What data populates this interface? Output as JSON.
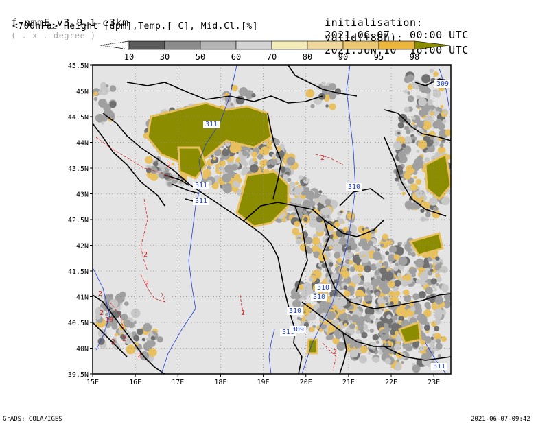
{
  "header": {
    "model": "f-nmmE_v3.9.1-e3km",
    "units_note": "( . x . degree )",
    "level_desc": "<700hPa> Height [dpm],Temp.[ C], Mid.Cl.[%]",
    "init_label": "initialisation:",
    "init_value": "2021.06.07.  00:00 UTC",
    "valid_label": "valid(+88h):",
    "valid_value": "2021.JUN.10  16:00 UTC"
  },
  "colorbar": {
    "labels": [
      "10",
      "30",
      "50",
      "60",
      "70",
      "80",
      "90",
      "95",
      "98"
    ],
    "colors": [
      "#ffffff",
      "#5a5a5a",
      "#8c8c8c",
      "#b4b4b4",
      "#d2d2d2",
      "#f3ecb8",
      "#efd69a",
      "#ecc772",
      "#eab53a",
      "#8c8c00"
    ]
  },
  "map": {
    "lat_labels": [
      "45.5N",
      "45N",
      "44.5N",
      "44N",
      "43.5N",
      "43N",
      "42.5N",
      "42N",
      "41.5N",
      "41N",
      "40.5N",
      "40N",
      "39.5N"
    ],
    "lon_labels": [
      "15E",
      "16E",
      "17E",
      "18E",
      "19E",
      "20E",
      "21E",
      "22E",
      "23E"
    ],
    "height_contours": [
      "311",
      "311",
      "311",
      "310",
      "310",
      "310",
      "310",
      "310",
      "309",
      "309",
      "311"
    ],
    "temp_contours": [
      "2",
      "2",
      "2",
      "2",
      "2",
      "2",
      "2",
      "10",
      "2",
      "2",
      "2",
      "2"
    ],
    "colors": {
      "land_bg": "#e4e4e4",
      "cloud_dark": "#707070",
      "cloud_mid": "#a0a0a0",
      "cloud_light": "#c8c8c8",
      "cloud_yellow": "#e8c060",
      "cloud_max": "#8c8c00",
      "height_line": "#1c3ccf",
      "temp_line": "#d02020"
    }
  },
  "footer": {
    "left": "GrADS: COLA/IGES",
    "right": "2021-06-07-09:42"
  }
}
